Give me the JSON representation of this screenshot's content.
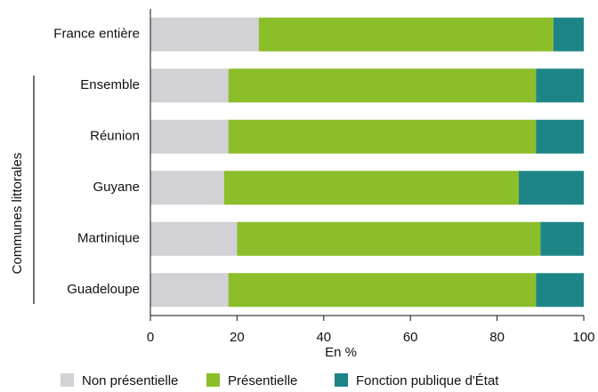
{
  "chart_data": {
    "type": "stacked_barh",
    "categories": [
      "France entière",
      "Ensemble",
      "Réunion",
      "Guyane",
      "Martinique",
      "Guadeloupe"
    ],
    "group_label": "Communes littorales",
    "series": [
      {
        "name": "Non présentielle",
        "color": "#d1d1d6",
        "values": [
          25,
          18,
          18,
          17,
          20,
          18
        ]
      },
      {
        "name": "Présentielle",
        "color": "#8cbe2a",
        "values": [
          68,
          71,
          71,
          68,
          70,
          71
        ]
      },
      {
        "name": "Fonction publique d'État",
        "color": "#1e8587",
        "values": [
          7,
          11,
          11,
          15,
          10,
          11
        ]
      }
    ],
    "xlabel": "En %",
    "xlim": [
      0,
      100
    ],
    "xticks": [
      0,
      20,
      40,
      60,
      80,
      100
    ],
    "legend": "bottom"
  }
}
